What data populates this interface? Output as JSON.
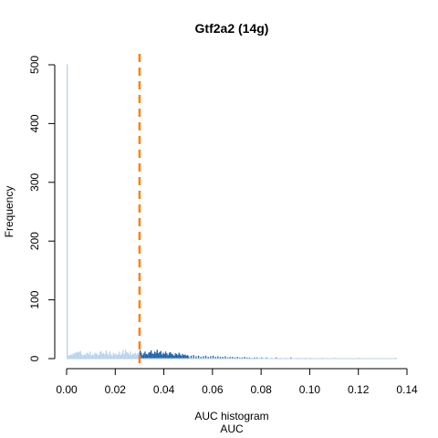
{
  "chart_data": {
    "type": "bar",
    "title": "Gtf2a2 (14g)",
    "xlabel": "AUC",
    "xlabel_top": "AUC histogram",
    "ylabel": "Frequency",
    "xlim": [
      0,
      0.14
    ],
    "ylim": [
      0,
      500
    ],
    "x_ticks": [
      "0.00",
      "0.02",
      "0.04",
      "0.06",
      "0.08",
      "0.10",
      "0.12",
      "0.14"
    ],
    "y_ticks": [
      "0",
      "100",
      "200",
      "300",
      "400",
      "500"
    ],
    "threshold": 0.03,
    "colors": {
      "below_threshold": "#b9d3ee",
      "above_threshold": "#1c5fae",
      "threshold_line": "#ff7f0e"
    },
    "bin_width": 0.0005,
    "series": [
      {
        "name": "below_threshold",
        "bins_start": [
          0.0,
          0.0005,
          0.001,
          0.0015,
          0.002,
          0.0025,
          0.003,
          0.0035,
          0.004,
          0.0045,
          0.005,
          0.0055,
          0.006,
          0.0065,
          0.007,
          0.0075,
          0.008,
          0.0085,
          0.009,
          0.0095,
          0.01,
          0.0105,
          0.011,
          0.0115,
          0.012,
          0.0125,
          0.013,
          0.0135,
          0.014,
          0.0145,
          0.015,
          0.0155,
          0.016,
          0.0165,
          0.017,
          0.0175,
          0.018,
          0.0185,
          0.019,
          0.0195,
          0.02,
          0.0205,
          0.021,
          0.0215,
          0.022,
          0.0225,
          0.023,
          0.0235,
          0.024,
          0.0245,
          0.025,
          0.0255,
          0.026,
          0.0265,
          0.027,
          0.0275,
          0.028,
          0.0285,
          0.029,
          0.0295
        ],
        "values": [
          501,
          5,
          6,
          7,
          6,
          9,
          8,
          11,
          10,
          12,
          11,
          13,
          7,
          5,
          8,
          6,
          9,
          10,
          7,
          12,
          5,
          8,
          6,
          10,
          9,
          7,
          6,
          11,
          13,
          8,
          10,
          7,
          14,
          9,
          6,
          12,
          8,
          5,
          10,
          7,
          9,
          6,
          8,
          12,
          6,
          9,
          14,
          8,
          15,
          11,
          10,
          7,
          12,
          6,
          9,
          8,
          10,
          7,
          9,
          11
        ]
      },
      {
        "name": "above_threshold",
        "bins_start": [
          0.03,
          0.0305,
          0.031,
          0.0315,
          0.032,
          0.0325,
          0.033,
          0.0335,
          0.034,
          0.0345,
          0.035,
          0.0355,
          0.036,
          0.0365,
          0.037,
          0.0375,
          0.038,
          0.0385,
          0.039,
          0.0395,
          0.04,
          0.0405,
          0.041,
          0.0415,
          0.042,
          0.0425,
          0.043,
          0.0435,
          0.044,
          0.0445,
          0.045,
          0.0455,
          0.046,
          0.0465,
          0.047,
          0.0475,
          0.048,
          0.0485,
          0.049,
          0.0495,
          0.05,
          0.051,
          0.052,
          0.053,
          0.054,
          0.055,
          0.056,
          0.057,
          0.058,
          0.059,
          0.06,
          0.061,
          0.062,
          0.063,
          0.064,
          0.065,
          0.066,
          0.067,
          0.068,
          0.069,
          0.07,
          0.071,
          0.072,
          0.073,
          0.074,
          0.075,
          0.076,
          0.077,
          0.078,
          0.079,
          0.08,
          0.082,
          0.084,
          0.086,
          0.088,
          0.09,
          0.092,
          0.095,
          0.098,
          0.1,
          0.105,
          0.11,
          0.12,
          0.135
        ],
        "values": [
          14,
          10,
          6,
          9,
          12,
          8,
          7,
          10,
          11,
          14,
          9,
          8,
          12,
          10,
          15,
          9,
          11,
          13,
          7,
          10,
          8,
          12,
          9,
          6,
          10,
          11,
          8,
          7,
          5,
          9,
          8,
          6,
          10,
          7,
          5,
          8,
          6,
          7,
          5,
          6,
          4,
          5,
          6,
          4,
          5,
          3,
          4,
          5,
          3,
          4,
          5,
          3,
          4,
          3,
          3,
          4,
          2,
          3,
          3,
          2,
          3,
          2,
          2,
          3,
          2,
          2,
          1,
          2,
          2,
          1,
          2,
          2,
          1,
          2,
          1,
          1,
          2,
          1,
          1,
          1,
          1,
          1,
          1,
          1
        ]
      }
    ]
  }
}
